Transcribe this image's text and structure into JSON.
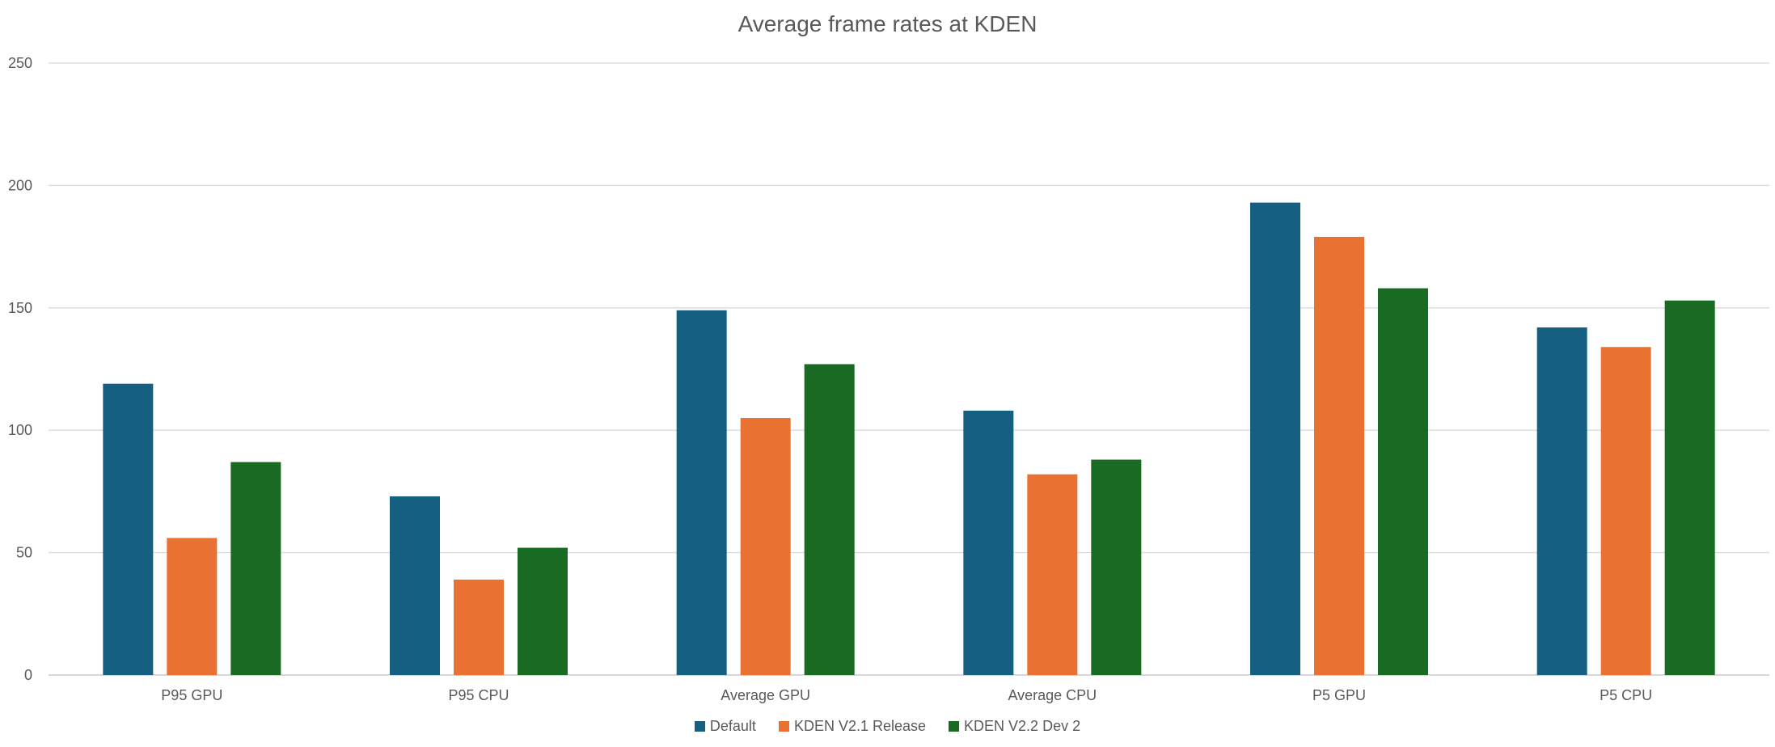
{
  "chart_data": {
    "type": "bar",
    "title": "Average frame rates at KDEN",
    "xlabel": "",
    "ylabel": "",
    "ylim": [
      0,
      250
    ],
    "yticks": [
      0,
      50,
      100,
      150,
      200,
      250
    ],
    "grid": true,
    "legend_position": "bottom",
    "categories": [
      "P95 GPU",
      "P95 CPU",
      "Average GPU",
      "Average CPU",
      "P5 GPU",
      "P5 CPU"
    ],
    "series": [
      {
        "name": "Default",
        "color": "#156082",
        "values": [
          119,
          73,
          149,
          108,
          193,
          142
        ]
      },
      {
        "name": "KDEN V2.1 Release",
        "color": "#E97132",
        "values": [
          56,
          39,
          105,
          82,
          179,
          134
        ]
      },
      {
        "name": "KDEN V2.2 Dev 2",
        "color": "#196B24",
        "values": [
          87,
          52,
          127,
          88,
          158,
          153
        ]
      }
    ]
  }
}
